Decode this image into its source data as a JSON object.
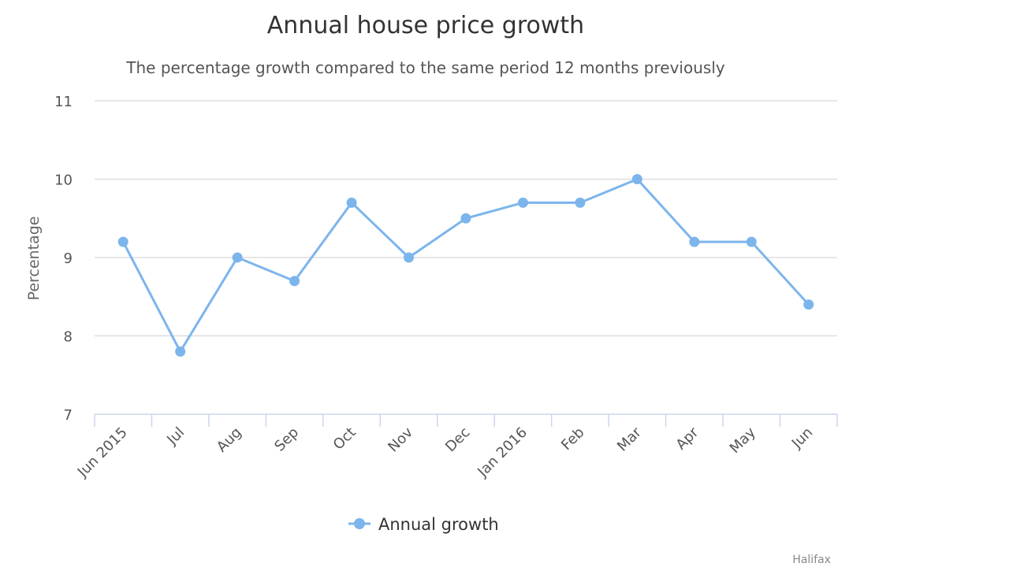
{
  "chart_data": {
    "type": "line",
    "title": "Annual house price growth",
    "subtitle": "The percentage growth compared to the same period 12 months previously",
    "xlabel": "",
    "ylabel": "Percentage",
    "categories": [
      "Jun 2015",
      "Jul",
      "Aug",
      "Sep",
      "Oct",
      "Nov",
      "Dec",
      "Jan 2016",
      "Feb",
      "Mar",
      "Apr",
      "May",
      "Jun"
    ],
    "series": [
      {
        "name": "Annual growth",
        "values": [
          9.2,
          7.8,
          9.0,
          8.7,
          9.7,
          9.0,
          9.5,
          9.7,
          9.7,
          10.0,
          9.2,
          9.2,
          8.4
        ],
        "color": "#7cb5ec"
      }
    ],
    "ylim": [
      7,
      11
    ],
    "yticks": [
      7,
      8,
      9,
      10,
      11
    ],
    "grid": true,
    "legend_position": "bottom-center",
    "credit": "Halifax"
  }
}
